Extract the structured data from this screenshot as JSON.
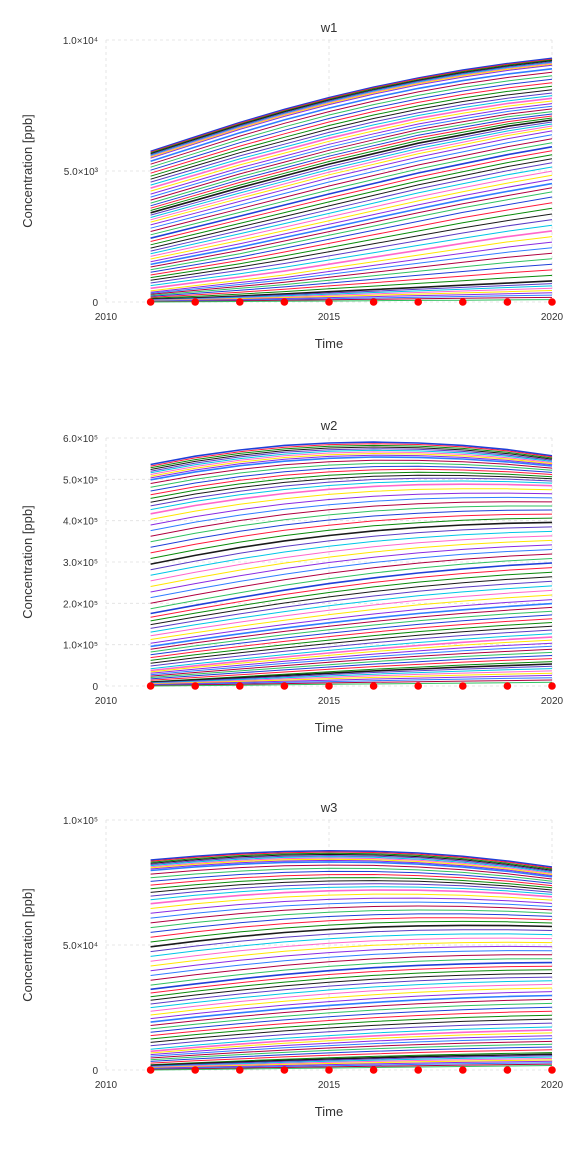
{
  "chart_data": [
    {
      "type": "line",
      "title": "w1",
      "xlabel": "Time",
      "ylabel": "Concentration [ppb]",
      "xlim": [
        2010,
        2020
      ],
      "ylim": [
        0,
        10000
      ],
      "x_ticks": [
        "2010",
        "2015",
        "2020"
      ],
      "y_ticks": [
        "0",
        "5.0×10³",
        "1.0×10⁴"
      ],
      "grid": true,
      "series_count": 72,
      "x": [
        2011,
        2012,
        2013,
        2014,
        2015,
        2016,
        2017,
        2018,
        2019,
        2020
      ],
      "series": [
        {
          "values": [
            5750,
            6300,
            6850,
            7350,
            7800,
            8200,
            8550,
            8850,
            9100,
            9300
          ]
        },
        {
          "values": [
            5500,
            6050,
            6600,
            7100,
            7550,
            7950,
            8300,
            8600,
            8850,
            9050
          ]
        },
        {
          "values": [
            4600,
            5100,
            5600,
            6050,
            6500,
            6900,
            7250,
            7550,
            7800,
            8000
          ]
        },
        {
          "values": [
            3700,
            4200,
            4700,
            5150,
            5600,
            6000,
            6400,
            6700,
            7000,
            7200
          ]
        },
        {
          "values": [
            3000,
            3450,
            3900,
            4350,
            4800,
            5200,
            5600,
            5950,
            6300,
            6600
          ]
        },
        {
          "values": [
            2000,
            2400,
            2800,
            3200,
            3600,
            4000,
            4400,
            4750,
            5100,
            5400
          ]
        },
        {
          "values": [
            1200,
            1500,
            1800,
            2150,
            2500,
            2850,
            3200,
            3550,
            3850,
            4150
          ]
        },
        {
          "values": [
            400,
            600,
            800,
            1000,
            1250,
            1500,
            1750,
            2000,
            2250,
            2450
          ]
        },
        {
          "values": [
            100,
            150,
            220,
            300,
            380,
            460,
            540,
            620,
            700,
            780
          ]
        },
        {
          "values": [
            0,
            10,
            20,
            30,
            40,
            50,
            60,
            70,
            80,
            90
          ]
        }
      ],
      "markers": {
        "color": "#ff0000",
        "y": 0
      }
    },
    {
      "type": "line",
      "title": "w2",
      "xlabel": "Time",
      "ylabel": "Concentration [ppb]",
      "xlim": [
        2010,
        2020
      ],
      "ylim": [
        0,
        600000
      ],
      "x_ticks": [
        "2010",
        "2015",
        "2020"
      ],
      "y_ticks": [
        "0",
        "1.0×10⁵",
        "2.0×10⁵",
        "3.0×10⁵",
        "4.0×10⁵",
        "5.0×10⁵",
        "6.0×10⁵"
      ],
      "grid": true,
      "series_count": 72,
      "x": [
        2011,
        2012,
        2013,
        2014,
        2015,
        2016,
        2017,
        2018,
        2019,
        2020
      ],
      "series": [
        {
          "values": [
            536000,
            556000,
            571000,
            582000,
            588000,
            590000,
            588000,
            582000,
            572000,
            557000
          ]
        },
        {
          "values": [
            500000,
            519000,
            534000,
            545000,
            552000,
            555000,
            554000,
            550000,
            543000,
            533000
          ]
        },
        {
          "values": [
            420000,
            440000,
            456000,
            469000,
            479000,
            486000,
            490000,
            491000,
            490000,
            487000
          ]
        },
        {
          "values": [
            300000,
            321000,
            340000,
            356000,
            369000,
            380000,
            388000,
            394000,
            398000,
            400000
          ]
        },
        {
          "values": [
            180000,
            200000,
            219000,
            237000,
            253000,
            267000,
            279000,
            289000,
            297000,
            303000
          ]
        },
        {
          "values": [
            100000,
            116000,
            131000,
            145000,
            158000,
            170000,
            181000,
            190000,
            198000,
            205000
          ]
        },
        {
          "values": [
            40000,
            52000,
            63000,
            74000,
            84000,
            94000,
            103000,
            111000,
            118000,
            124000
          ]
        },
        {
          "values": [
            10000,
            16000,
            22000,
            28000,
            34000,
            40000,
            45000,
            50000,
            54000,
            58000
          ]
        },
        {
          "values": [
            0,
            1000,
            2000,
            3000,
            4000,
            5000,
            6000,
            7000,
            8000,
            9000
          ]
        }
      ],
      "markers": {
        "color": "#ff0000",
        "y": 0
      }
    },
    {
      "type": "line",
      "title": "w3",
      "xlabel": "Time",
      "ylabel": "Concentration [ppb]",
      "xlim": [
        2010,
        2020
      ],
      "ylim": [
        0,
        100000
      ],
      "x_ticks": [
        "2010",
        "2015",
        "2020"
      ],
      "y_ticks": [
        "0",
        "5.0×10⁴",
        "1.0×10⁵"
      ],
      "grid": true,
      "series_count": 72,
      "x": [
        2011,
        2012,
        2013,
        2014,
        2015,
        2016,
        2017,
        2018,
        2019,
        2020
      ],
      "series": [
        {
          "values": [
            84000,
            85500,
            86700,
            87400,
            87700,
            87500,
            86800,
            85500,
            83600,
            81200
          ]
        },
        {
          "values": [
            80000,
            81400,
            82500,
            83200,
            83400,
            83200,
            82500,
            81300,
            79600,
            77400
          ]
        },
        {
          "values": [
            67000,
            68800,
            70300,
            71400,
            72100,
            72400,
            72300,
            71800,
            70900,
            69600
          ]
        },
        {
          "values": [
            50000,
            52200,
            54100,
            55700,
            56900,
            57800,
            58300,
            58500,
            58400,
            58000
          ]
        },
        {
          "values": [
            33000,
            35200,
            37200,
            39000,
            40500,
            41700,
            42600,
            43200,
            43600,
            43700
          ]
        },
        {
          "values": [
            20000,
            22000,
            23800,
            25400,
            26800,
            28000,
            29000,
            29800,
            30400,
            30800
          ]
        },
        {
          "values": [
            8000,
            9600,
            11000,
            12300,
            13400,
            14400,
            15200,
            15900,
            16400,
            16800
          ]
        },
        {
          "values": [
            2000,
            2800,
            3500,
            4200,
            4800,
            5300,
            5800,
            6200,
            6500,
            6800
          ]
        },
        {
          "values": [
            0,
            200,
            400,
            600,
            800,
            1000,
            1200,
            1400,
            1600,
            1800
          ]
        }
      ],
      "markers": {
        "color": "#ff0000",
        "y": 0
      }
    }
  ],
  "palette": [
    "#1f3fd8",
    "#ff1a3c",
    "#0a8a0a",
    "#1a1a1a",
    "#5b3cc4",
    "#00c6e6",
    "#ff66cc",
    "#ffe600",
    "#8a2be2",
    "#2f7dff",
    "#b00040",
    "#30c060"
  ]
}
